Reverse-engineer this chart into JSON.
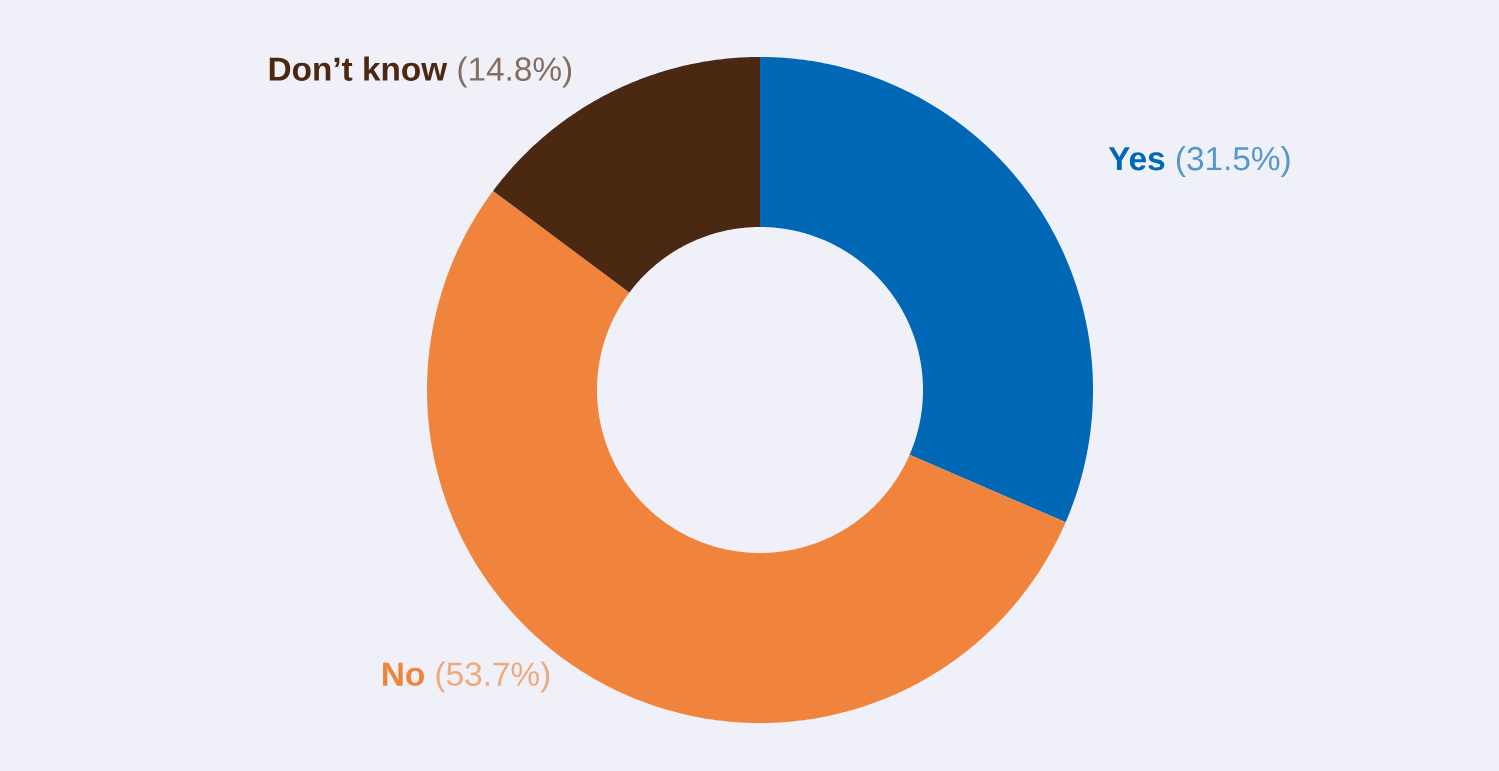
{
  "chart_data": {
    "type": "donut",
    "categories": [
      "Yes",
      "No",
      "Don’t know"
    ],
    "values": [
      31.5,
      53.7,
      14.8
    ],
    "value_labels": [
      "(31.5%)",
      "(53.7%)",
      "(14.8%)"
    ],
    "colors": [
      "#0068b5",
      "#f0843c",
      "#4a2812"
    ]
  }
}
